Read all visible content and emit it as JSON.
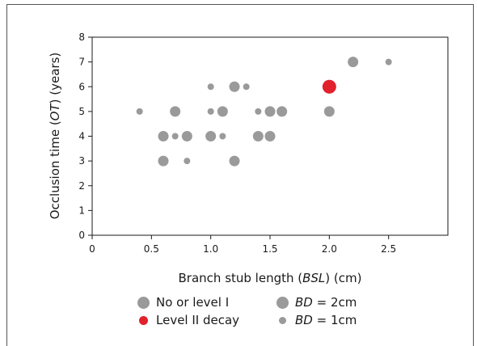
{
  "colors": {
    "gray": "#9a9a9a",
    "red": "#e1212b",
    "axis": "#1a1a1a"
  },
  "chart_data": {
    "type": "scatter",
    "title": "",
    "xlabel_parts": [
      "Branch stub length (",
      "BSL",
      ") (cm)"
    ],
    "ylabel_parts": [
      "Occlusion time (",
      "OT",
      ") (years)"
    ],
    "xlim": [
      0,
      3
    ],
    "ylim": [
      0,
      8
    ],
    "x_ticks": [
      "0",
      "0.5",
      "1.0",
      "1.5",
      "2.0",
      "2.5"
    ],
    "x_tick_values": [
      0,
      0.5,
      1.0,
      1.5,
      2.0,
      2.5
    ],
    "y_ticks": [
      "0",
      "1",
      "2",
      "3",
      "4",
      "5",
      "6",
      "7",
      "8"
    ],
    "y_tick_values": [
      0,
      1,
      2,
      3,
      4,
      5,
      6,
      7,
      8
    ],
    "grid": false,
    "series": [
      {
        "name": "No or level I",
        "color": "#9a9a9a",
        "points": [
          {
            "x": 0.4,
            "y": 5,
            "bd": 1
          },
          {
            "x": 0.6,
            "y": 4,
            "bd": 2
          },
          {
            "x": 0.6,
            "y": 3,
            "bd": 2
          },
          {
            "x": 0.7,
            "y": 5,
            "bd": 2
          },
          {
            "x": 0.7,
            "y": 4,
            "bd": 1
          },
          {
            "x": 0.8,
            "y": 4,
            "bd": 2
          },
          {
            "x": 0.8,
            "y": 3,
            "bd": 1
          },
          {
            "x": 1.0,
            "y": 6,
            "bd": 1
          },
          {
            "x": 1.0,
            "y": 5,
            "bd": 1
          },
          {
            "x": 1.0,
            "y": 4,
            "bd": 2
          },
          {
            "x": 1.1,
            "y": 5,
            "bd": 2
          },
          {
            "x": 1.1,
            "y": 4,
            "bd": 1
          },
          {
            "x": 1.2,
            "y": 6,
            "bd": 2
          },
          {
            "x": 1.2,
            "y": 3,
            "bd": 2
          },
          {
            "x": 1.3,
            "y": 6,
            "bd": 1
          },
          {
            "x": 1.4,
            "y": 5,
            "bd": 1
          },
          {
            "x": 1.4,
            "y": 4,
            "bd": 2
          },
          {
            "x": 1.5,
            "y": 5,
            "bd": 2
          },
          {
            "x": 1.5,
            "y": 4,
            "bd": 2
          },
          {
            "x": 1.6,
            "y": 5,
            "bd": 2
          },
          {
            "x": 2.0,
            "y": 5,
            "bd": 2
          },
          {
            "x": 2.2,
            "y": 7,
            "bd": 2
          },
          {
            "x": 2.5,
            "y": 7,
            "bd": 1
          }
        ]
      },
      {
        "name": "Level II decay",
        "color": "#e1212b",
        "points": [
          {
            "x": 2.0,
            "y": 6,
            "bd": 3
          }
        ]
      }
    ],
    "legend": {
      "placement": "bottom",
      "entries": [
        {
          "label": "No or level I",
          "color": "#9a9a9a",
          "size": "big"
        },
        {
          "label": "Level II decay",
          "color": "#e1212b",
          "size": "med"
        }
      ],
      "size_entries": [
        {
          "italic": "BD",
          "rest": " = 2cm",
          "size": "big"
        },
        {
          "italic": "BD",
          "rest": " = 1cm",
          "size": "small"
        }
      ]
    }
  }
}
